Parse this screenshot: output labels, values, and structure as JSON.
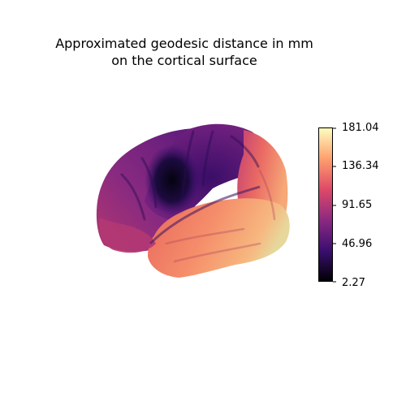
{
  "title": {
    "line1": "Approximated geodesic distance in mm",
    "line2": "on the cortical surface"
  },
  "colorbar": {
    "colormap": "magma",
    "stops": [
      "#000004",
      "#3b0f70",
      "#8c2981",
      "#de4968",
      "#fe9f6d",
      "#fcfdbf"
    ],
    "ticks": [
      "181.04",
      "136.34",
      "91.65",
      "46.96",
      "2.27"
    ],
    "min": 2.27,
    "max": 181.04
  }
}
